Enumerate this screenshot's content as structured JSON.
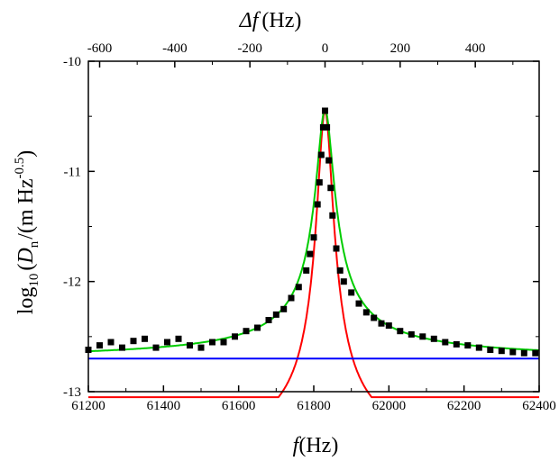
{
  "chart_data": {
    "type": "scatter",
    "xlabel_prefix": "f",
    "xlabel_unit": "(Hz)",
    "x2label_prefix": "Δf",
    "x2label_unit": "(Hz)",
    "ylabel": {
      "log": "log",
      "log_sub": "10",
      "open": "(",
      "var": "D",
      "var_sub": "n",
      "unit": "/(m Hz",
      "unit_sup": "-0.5",
      "close": ")"
    },
    "xlim": [
      61200,
      62400
    ],
    "ylim": [
      -13,
      -10
    ],
    "x2lim": [
      -630,
      570
    ],
    "x_ticks": [
      "61200",
      "61400",
      "61600",
      "61800",
      "62000",
      "62200",
      "62400"
    ],
    "x2_ticks": [
      "-600",
      "-400",
      "-200",
      "0",
      "200",
      "400"
    ],
    "y_ticks": [
      "-10",
      "-11",
      "-12",
      "-13"
    ],
    "center_frequency": 61830,
    "series": [
      {
        "kind": "measured",
        "color": "#000000",
        "marker": "square",
        "x": [
          61200,
          61230,
          61260,
          61290,
          61320,
          61350,
          61380,
          61410,
          61440,
          61470,
          61500,
          61530,
          61560,
          61590,
          61620,
          61650,
          61680,
          61700,
          61720,
          61740,
          61760,
          61780,
          61790,
          61800,
          61810,
          61815,
          61820,
          61825,
          61830,
          61835,
          61840,
          61845,
          61850,
          61860,
          61870,
          61880,
          61900,
          61920,
          61940,
          61960,
          61980,
          62000,
          62030,
          62060,
          62090,
          62120,
          62150,
          62180,
          62210,
          62240,
          62270,
          62300,
          62330,
          62360,
          62390
        ],
        "y": [
          -12.62,
          -12.58,
          -12.55,
          -12.6,
          -12.54,
          -12.52,
          -12.6,
          -12.55,
          -12.52,
          -12.58,
          -12.6,
          -12.55,
          -12.55,
          -12.5,
          -12.45,
          -12.42,
          -12.35,
          -12.3,
          -12.25,
          -12.15,
          -12.05,
          -11.9,
          -11.75,
          -11.6,
          -11.3,
          -11.1,
          -10.85,
          -10.6,
          -10.45,
          -10.6,
          -10.9,
          -11.15,
          -11.4,
          -11.7,
          -11.9,
          -12.0,
          -12.1,
          -12.2,
          -12.28,
          -12.33,
          -12.38,
          -12.4,
          -12.45,
          -12.48,
          -12.5,
          -12.52,
          -12.55,
          -12.57,
          -12.58,
          -12.6,
          -12.62,
          -12.63,
          -12.64,
          -12.65,
          -12.65
        ]
      },
      {
        "kind": "fit",
        "color": "#ff0000",
        "model": "lorentzian",
        "baseline": -13.6,
        "amplitude": 3.15,
        "half_width": 22
      },
      {
        "kind": "fit",
        "color": "#00cc00",
        "model": "lorentzian",
        "baseline": -12.72,
        "amplitude": 2.28,
        "half_width": 24
      },
      {
        "kind": "fit",
        "color": "#0000ff",
        "model": "constant",
        "baseline": -12.7
      }
    ]
  }
}
